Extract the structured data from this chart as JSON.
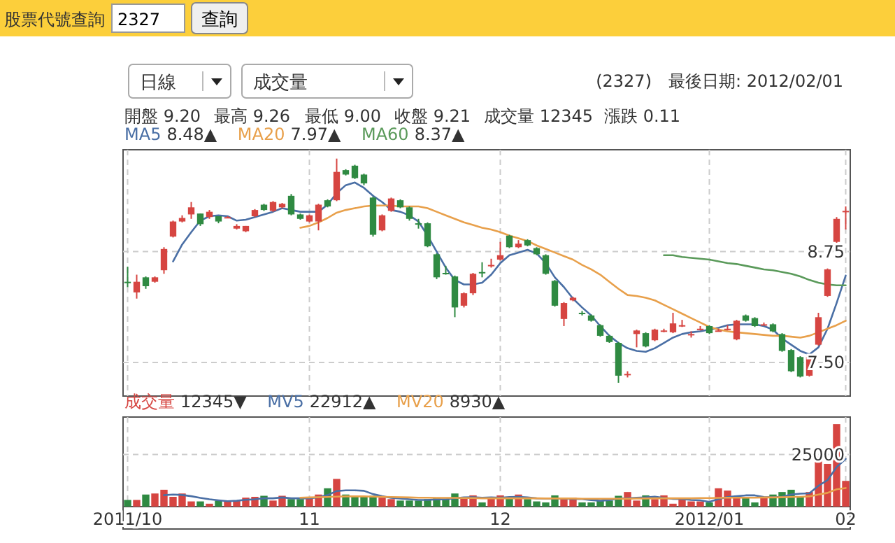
{
  "chart_data": [
    {
      "type": "candlestick",
      "title": "(2327)",
      "categories": [
        "2011/10",
        null,
        null,
        null,
        null,
        null,
        null,
        null,
        null,
        null,
        null,
        null,
        null,
        null,
        null,
        null,
        null,
        null,
        null,
        null,
        "11",
        null,
        null,
        null,
        null,
        null,
        null,
        null,
        null,
        null,
        null,
        null,
        null,
        null,
        null,
        null,
        null,
        null,
        null,
        null,
        null,
        "12",
        null,
        null,
        null,
        null,
        null,
        null,
        null,
        null,
        null,
        null,
        null,
        null,
        null,
        null,
        null,
        null,
        null,
        null,
        null,
        null,
        null,
        null,
        "2012/01",
        null,
        null,
        null,
        null,
        null,
        null,
        null,
        null,
        null,
        null,
        null,
        null,
        null,
        null,
        "02"
      ],
      "ohlc": [
        [
          8.41,
          8.58,
          8.35,
          8.4
        ],
        [
          8.29,
          8.49,
          8.22,
          8.41
        ],
        [
          8.46,
          8.47,
          8.33,
          8.36
        ],
        [
          8.41,
          8.47,
          8.4,
          8.46
        ],
        [
          8.54,
          8.8,
          8.5,
          8.78
        ],
        [
          8.92,
          9.1,
          8.91,
          9.09
        ],
        [
          9.09,
          9.16,
          9.08,
          9.13
        ],
        [
          9.17,
          9.31,
          9.12,
          9.25
        ],
        [
          9.18,
          9.18,
          9.04,
          9.06
        ],
        [
          9.14,
          9.22,
          9.12,
          9.2
        ],
        [
          9.15,
          9.15,
          9.07,
          9.09
        ],
        [
          9.14,
          9.15,
          9.13,
          9.14
        ],
        [
          9.01,
          9.06,
          9.0,
          9.04
        ],
        [
          8.98,
          9.04,
          8.97,
          9.04
        ],
        [
          9.15,
          9.23,
          9.14,
          9.22
        ],
        [
          9.28,
          9.29,
          9.21,
          9.22
        ],
        [
          9.21,
          9.32,
          9.2,
          9.31
        ],
        [
          9.25,
          9.3,
          9.24,
          9.29
        ],
        [
          9.38,
          9.4,
          9.16,
          9.17
        ],
        [
          9.17,
          9.18,
          9.11,
          9.12
        ],
        [
          9.09,
          9.17,
          9.08,
          9.16
        ],
        [
          9.09,
          9.29,
          8.99,
          9.28
        ],
        [
          9.33,
          9.34,
          9.25,
          9.26
        ],
        [
          9.33,
          9.8,
          9.32,
          9.65
        ],
        [
          9.67,
          9.68,
          9.61,
          9.62
        ],
        [
          9.72,
          9.73,
          9.57,
          9.58
        ],
        [
          9.62,
          9.63,
          9.5,
          9.52
        ],
        [
          9.36,
          9.37,
          8.92,
          8.94
        ],
        [
          8.99,
          9.17,
          8.98,
          9.16
        ],
        [
          9.21,
          9.36,
          9.2,
          9.35
        ],
        [
          9.33,
          9.34,
          9.24,
          9.25
        ],
        [
          9.25,
          9.26,
          9.1,
          9.12
        ],
        [
          9.07,
          9.12,
          9.01,
          9.06
        ],
        [
          9.07,
          9.08,
          8.8,
          8.81
        ],
        [
          8.72,
          8.73,
          8.44,
          8.46
        ],
        [
          8.51,
          8.59,
          8.49,
          8.5
        ],
        [
          8.47,
          8.48,
          8.01,
          8.12
        ],
        [
          8.14,
          8.29,
          8.12,
          8.28
        ],
        [
          8.28,
          8.51,
          8.26,
          8.5
        ],
        [
          8.52,
          8.63,
          8.46,
          8.51
        ],
        [
          8.59,
          8.67,
          8.57,
          8.6
        ],
        [
          8.66,
          8.86,
          8.65,
          8.71
        ],
        [
          8.93,
          8.94,
          8.79,
          8.8
        ],
        [
          8.8,
          8.88,
          8.79,
          8.84
        ],
        [
          8.88,
          8.89,
          8.81,
          8.82
        ],
        [
          8.79,
          8.8,
          8.71,
          8.72
        ],
        [
          8.71,
          8.72,
          8.49,
          8.5
        ],
        [
          8.42,
          8.43,
          8.13,
          8.14
        ],
        [
          7.99,
          8.18,
          7.91,
          8.17
        ],
        [
          8.2,
          8.24,
          8.19,
          8.23
        ],
        [
          8.06,
          8.08,
          8.03,
          8.05
        ],
        [
          8.03,
          8.04,
          7.96,
          7.97
        ],
        [
          7.92,
          7.93,
          7.79,
          7.8
        ],
        [
          7.8,
          7.81,
          7.72,
          7.73
        ],
        [
          7.72,
          7.73,
          7.27,
          7.35
        ],
        [
          7.36,
          7.4,
          7.33,
          7.37
        ],
        [
          7.82,
          7.87,
          7.67,
          7.86
        ],
        [
          7.83,
          7.84,
          7.67,
          7.68
        ],
        [
          7.75,
          7.88,
          7.74,
          7.87
        ],
        [
          7.85,
          7.88,
          7.84,
          7.86
        ],
        [
          7.84,
          8.06,
          7.83,
          7.94
        ],
        [
          7.92,
          7.98,
          7.9,
          7.92
        ],
        [
          7.82,
          7.85,
          7.78,
          7.82
        ],
        [
          7.88,
          7.91,
          7.86,
          7.88
        ],
        [
          7.91,
          7.92,
          7.82,
          7.83
        ],
        [
          7.86,
          7.88,
          7.85,
          7.86
        ],
        [
          7.87,
          7.92,
          7.86,
          7.88
        ],
        [
          7.76,
          7.98,
          7.75,
          7.97
        ],
        [
          8.03,
          8.04,
          7.96,
          7.97
        ],
        [
          8.0,
          8.01,
          7.9,
          7.91
        ],
        [
          7.93,
          7.95,
          7.92,
          7.93
        ],
        [
          7.93,
          7.94,
          7.84,
          7.85
        ],
        [
          7.82,
          7.83,
          7.62,
          7.63
        ],
        [
          7.64,
          7.65,
          7.39,
          7.4
        ],
        [
          7.56,
          7.57,
          7.33,
          7.34
        ],
        [
          7.35,
          7.57,
          7.34,
          7.56
        ],
        [
          7.7,
          8.06,
          7.69,
          8.01
        ],
        [
          8.25,
          8.56,
          8.24,
          8.55
        ],
        [
          8.86,
          9.14,
          8.85,
          9.12
        ],
        [
          9.2,
          9.26,
          9.0,
          9.21
        ]
      ],
      "colors": [
        "#2f8a42",
        "#d64541",
        "#2f8a42",
        "#d64541",
        "#d64541",
        "#d64541",
        "#d64541",
        "#d64541",
        "#2f8a42",
        "#d64541",
        "#2f8a42",
        "#d64541",
        "#d64541",
        "#d64541",
        "#d64541",
        "#2f8a42",
        "#d64541",
        "#d64541",
        "#2f8a42",
        "#2f8a42",
        "#d64541",
        "#d64541",
        "#2f8a42",
        "#d64541",
        "#2f8a42",
        "#2f8a42",
        "#2f8a42",
        "#2f8a42",
        "#d64541",
        "#d64541",
        "#2f8a42",
        "#2f8a42",
        "#2f8a42",
        "#2f8a42",
        "#2f8a42",
        "#2f8a42",
        "#2f8a42",
        "#d64541",
        "#d64541",
        "#2f8a42",
        "#d64541",
        "#d64541",
        "#2f8a42",
        "#d64541",
        "#2f8a42",
        "#2f8a42",
        "#2f8a42",
        "#2f8a42",
        "#d64541",
        "#d64541",
        "#2f8a42",
        "#2f8a42",
        "#2f8a42",
        "#2f8a42",
        "#2f8a42",
        "#d64541",
        "#d64541",
        "#2f8a42",
        "#d64541",
        "#d64541",
        "#d64541",
        "#d64541",
        "#d64541",
        "#d64541",
        "#2f8a42",
        "#d64541",
        "#d64541",
        "#d64541",
        "#2f8a42",
        "#2f8a42",
        "#d64541",
        "#2f8a42",
        "#2f8a42",
        "#2f8a42",
        "#2f8a42",
        "#d64541",
        "#d64541",
        "#d64541",
        "#d64541",
        "#d64541"
      ],
      "series": [
        {
          "name": "MA5",
          "type": "line",
          "color": "#4a6fa5",
          "values": [
            null,
            null,
            null,
            null,
            null,
            8.64,
            8.83,
            8.97,
            9.1,
            9.15,
            9.16,
            9.15,
            9.1,
            9.11,
            9.14,
            9.17,
            9.2,
            9.24,
            9.22,
            9.2,
            9.2,
            9.2,
            9.28,
            9.41,
            9.5,
            9.53,
            9.47,
            9.38,
            9.31,
            9.22,
            9.2,
            9.16,
            9.09,
            8.93,
            8.75,
            8.57,
            8.43,
            8.38,
            8.38,
            8.4,
            8.49,
            8.62,
            8.71,
            8.74,
            8.77,
            8.73,
            8.62,
            8.46,
            8.35,
            8.22,
            8.12,
            8.03,
            7.91,
            7.8,
            7.72,
            7.66,
            7.63,
            7.62,
            7.66,
            7.72,
            7.78,
            7.82,
            7.84,
            7.85,
            7.87,
            7.89,
            7.92,
            7.93,
            7.93,
            7.93,
            7.91,
            7.87,
            7.77,
            7.7,
            7.63,
            7.59,
            7.67,
            7.88,
            8.17,
            8.48
          ]
        },
        {
          "name": "MA20",
          "type": "line",
          "color": "#e8a04b",
          "values": [
            null,
            null,
            null,
            null,
            null,
            null,
            null,
            null,
            null,
            null,
            null,
            null,
            null,
            null,
            null,
            null,
            null,
            null,
            null,
            9.02,
            9.04,
            9.08,
            9.13,
            9.19,
            9.22,
            9.24,
            9.26,
            9.27,
            9.27,
            9.27,
            9.26,
            9.26,
            9.26,
            9.24,
            9.2,
            9.16,
            9.12,
            9.08,
            9.05,
            9.02,
            9.0,
            8.97,
            8.93,
            8.9,
            8.87,
            8.82,
            8.78,
            8.74,
            8.7,
            8.66,
            8.6,
            8.55,
            8.49,
            8.41,
            8.33,
            8.26,
            8.25,
            8.23,
            8.2,
            8.15,
            8.1,
            8.05,
            8.0,
            7.95,
            7.9,
            7.87,
            7.85,
            7.84,
            7.83,
            7.82,
            7.81,
            7.8,
            7.8,
            7.79,
            7.78,
            7.8,
            7.84,
            7.88,
            7.92,
            7.97
          ]
        },
        {
          "name": "MA60",
          "type": "line",
          "color": "#5a9a5a",
          "values": [
            null,
            null,
            null,
            null,
            null,
            null,
            null,
            null,
            null,
            null,
            null,
            null,
            null,
            null,
            null,
            null,
            null,
            null,
            null,
            null,
            null,
            null,
            null,
            null,
            null,
            null,
            null,
            null,
            null,
            null,
            null,
            null,
            null,
            null,
            null,
            null,
            null,
            null,
            null,
            null,
            null,
            null,
            null,
            null,
            null,
            null,
            null,
            null,
            null,
            null,
            null,
            null,
            null,
            null,
            null,
            null,
            null,
            null,
            null,
            8.71,
            8.71,
            8.69,
            8.68,
            8.67,
            8.66,
            8.64,
            8.62,
            8.61,
            8.59,
            8.57,
            8.55,
            8.54,
            8.52,
            8.5,
            8.47,
            8.43,
            8.4,
            8.38,
            8.37,
            8.37
          ]
        }
      ],
      "ylim": [
        7.12,
        9.9
      ],
      "yticks": [
        8.75,
        {
          "value": 7.5,
          "label": "7.50"
        }
      ],
      "grid": true,
      "tick_labels": "y",
      "legend": "top left",
      "annotations": [
        "股票代號查詢",
        "2327",
        "查詢",
        "日線",
        "成交量",
        "最後日期: 2012/02/01",
        "開盤 9.20",
        "最高 9.26",
        "最低 9.00",
        "收盤 9.21",
        "成交量 12345",
        "漲跌 0.11",
        "8.48▲",
        "7.97▲",
        "8.37▲"
      ]
    },
    {
      "type": "bar",
      "categories": [
        "2011/10",
        null,
        null,
        null,
        null,
        null,
        null,
        null,
        null,
        null,
        null,
        null,
        null,
        null,
        null,
        null,
        null,
        null,
        null,
        null,
        "11",
        null,
        null,
        null,
        null,
        null,
        null,
        null,
        null,
        null,
        null,
        null,
        null,
        null,
        null,
        null,
        null,
        null,
        null,
        null,
        null,
        "12",
        null,
        null,
        null,
        null,
        null,
        null,
        null,
        null,
        null,
        null,
        null,
        null,
        null,
        null,
        null,
        null,
        null,
        null,
        null,
        null,
        null,
        null,
        "2012/01",
        null,
        null,
        null,
        null,
        null,
        null,
        null,
        null,
        null,
        null,
        null,
        null,
        null,
        null,
        "02"
      ],
      "series": [
        {
          "name": "成交量",
          "color": "#d64541",
          "values": [
            3200,
            3200,
            5800,
            6300,
            8100,
            4700,
            6300,
            2500,
            2500,
            1400,
            2900,
            2900,
            2900,
            4300,
            4700,
            5200,
            2900,
            5200,
            3600,
            3600,
            4700,
            5800,
            8800,
            13300,
            5800,
            4700,
            4700,
            5200,
            4300,
            3600,
            2900,
            2900,
            2900,
            3600,
            4000,
            3600,
            6300,
            4700,
            5400,
            2000,
            4300,
            5400,
            4700,
            5800,
            3600,
            2500,
            2000,
            5400,
            4300,
            4300,
            2000,
            2000,
            2900,
            2900,
            5200,
            7000,
            2900,
            5400,
            3600,
            5400,
            1400,
            3600,
            2500,
            2500,
            2000,
            8800,
            7700,
            4300,
            4700,
            2000,
            4300,
            5800,
            7000,
            8100,
            4700,
            7000,
            23900,
            20500,
            39600,
            12345
          ],
          "colors": [
            "#2f8a42",
            "#d64541",
            "#2f8a42",
            "#d64541",
            "#d64541",
            "#d64541",
            "#d64541",
            "#d64541",
            "#2f8a42",
            "#d64541",
            "#2f8a42",
            "#d64541",
            "#d64541",
            "#d64541",
            "#d64541",
            "#2f8a42",
            "#d64541",
            "#d64541",
            "#2f8a42",
            "#2f8a42",
            "#d64541",
            "#d64541",
            "#2f8a42",
            "#d64541",
            "#2f8a42",
            "#2f8a42",
            "#2f8a42",
            "#2f8a42",
            "#d64541",
            "#d64541",
            "#2f8a42",
            "#2f8a42",
            "#2f8a42",
            "#2f8a42",
            "#2f8a42",
            "#2f8a42",
            "#2f8a42",
            "#d64541",
            "#d64541",
            "#2f8a42",
            "#d64541",
            "#d64541",
            "#2f8a42",
            "#d64541",
            "#2f8a42",
            "#2f8a42",
            "#2f8a42",
            "#2f8a42",
            "#d64541",
            "#d64541",
            "#2f8a42",
            "#2f8a42",
            "#2f8a42",
            "#2f8a42",
            "#2f8a42",
            "#d64541",
            "#d64541",
            "#2f8a42",
            "#d64541",
            "#d64541",
            "#d64541",
            "#d64541",
            "#d64541",
            "#d64541",
            "#2f8a42",
            "#d64541",
            "#d64541",
            "#d64541",
            "#2f8a42",
            "#2f8a42",
            "#d64541",
            "#2f8a42",
            "#2f8a42",
            "#2f8a42",
            "#2f8a42",
            "#d64541",
            "#d64541",
            "#d64541",
            "#d64541",
            "#d64541"
          ]
        },
        {
          "name": "MV5",
          "type": "line",
          "color": "#4a6fa5",
          "values": [
            null,
            null,
            null,
            null,
            5500,
            5800,
            5600,
            5000,
            4200,
            3500,
            3000,
            2600,
            2800,
            3300,
            3500,
            4000,
            4000,
            4400,
            4000,
            4000,
            4000,
            4500,
            5500,
            7500,
            7800,
            7800,
            7600,
            6000,
            5000,
            4200,
            3900,
            3500,
            3200,
            3200,
            3500,
            3500,
            4000,
            4400,
            4500,
            4300,
            4400,
            4300,
            4600,
            4700,
            4400,
            4000,
            3900,
            3900,
            3800,
            3600,
            3600,
            3100,
            2800,
            3100,
            3900,
            4000,
            4300,
            4400,
            4800,
            4200,
            3700,
            3600,
            3200,
            3000,
            2300,
            3600,
            4600,
            5000,
            5400,
            5400,
            4600,
            4500,
            4700,
            5800,
            6200,
            6400,
            10000,
            12700,
            19000,
            22912
          ]
        },
        {
          "name": "MV20",
          "type": "line",
          "color": "#e8a04b",
          "values": [
            null,
            null,
            null,
            null,
            null,
            null,
            null,
            null,
            null,
            null,
            null,
            null,
            null,
            null,
            null,
            null,
            null,
            null,
            null,
            4300,
            4400,
            4500,
            4600,
            4800,
            4900,
            4900,
            4900,
            4800,
            4700,
            4600,
            4500,
            4400,
            4300,
            4300,
            4200,
            4200,
            4200,
            4100,
            4100,
            4000,
            4000,
            4000,
            4000,
            4000,
            4000,
            4000,
            3900,
            3900,
            3900,
            3900,
            3800,
            3800,
            3800,
            3800,
            3800,
            3800,
            3900,
            3900,
            4000,
            4000,
            4000,
            4000,
            4000,
            4100,
            4100,
            4200,
            4300,
            4300,
            4300,
            4300,
            4400,
            4400,
            4500,
            4600,
            4700,
            4900,
            5800,
            6600,
            8300,
            8930
          ]
        }
      ],
      "ylim": [
        0,
        43000
      ],
      "yticks": [
        {
          "value": 0,
          "label": null
        },
        25000
      ],
      "grid": true,
      "legend": "top left",
      "annotations": [
        "12345▼",
        "22912▲",
        "8930▲"
      ]
    }
  ]
}
